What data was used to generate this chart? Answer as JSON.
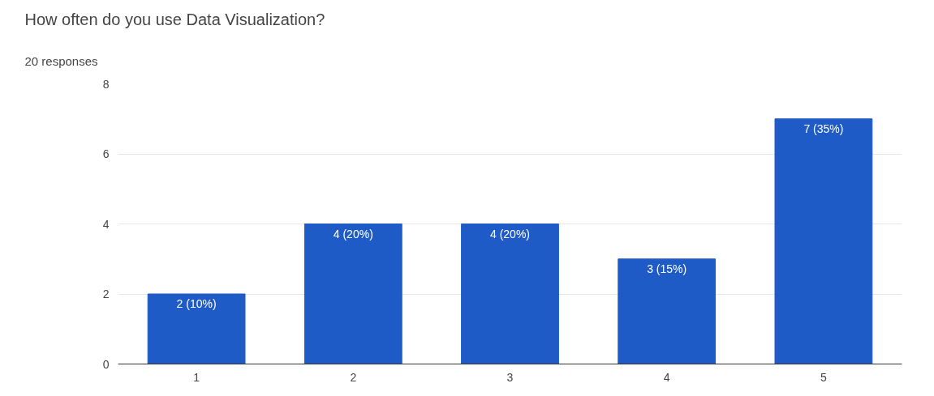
{
  "chart_data": {
    "type": "bar",
    "title": "How often do you use Data Visualization?",
    "subtitle": "20 responses",
    "categories": [
      "1",
      "2",
      "3",
      "4",
      "5"
    ],
    "values": [
      2,
      4,
      4,
      3,
      7
    ],
    "value_labels": [
      "2 (10%)",
      "4 (20%)",
      "4 (20%)",
      "3 (15%)",
      "7 (35%)"
    ],
    "color": "#1f5bc6",
    "ylim": [
      0,
      8
    ],
    "yticks": [
      0,
      2,
      4,
      6,
      8
    ],
    "grid": "y"
  }
}
